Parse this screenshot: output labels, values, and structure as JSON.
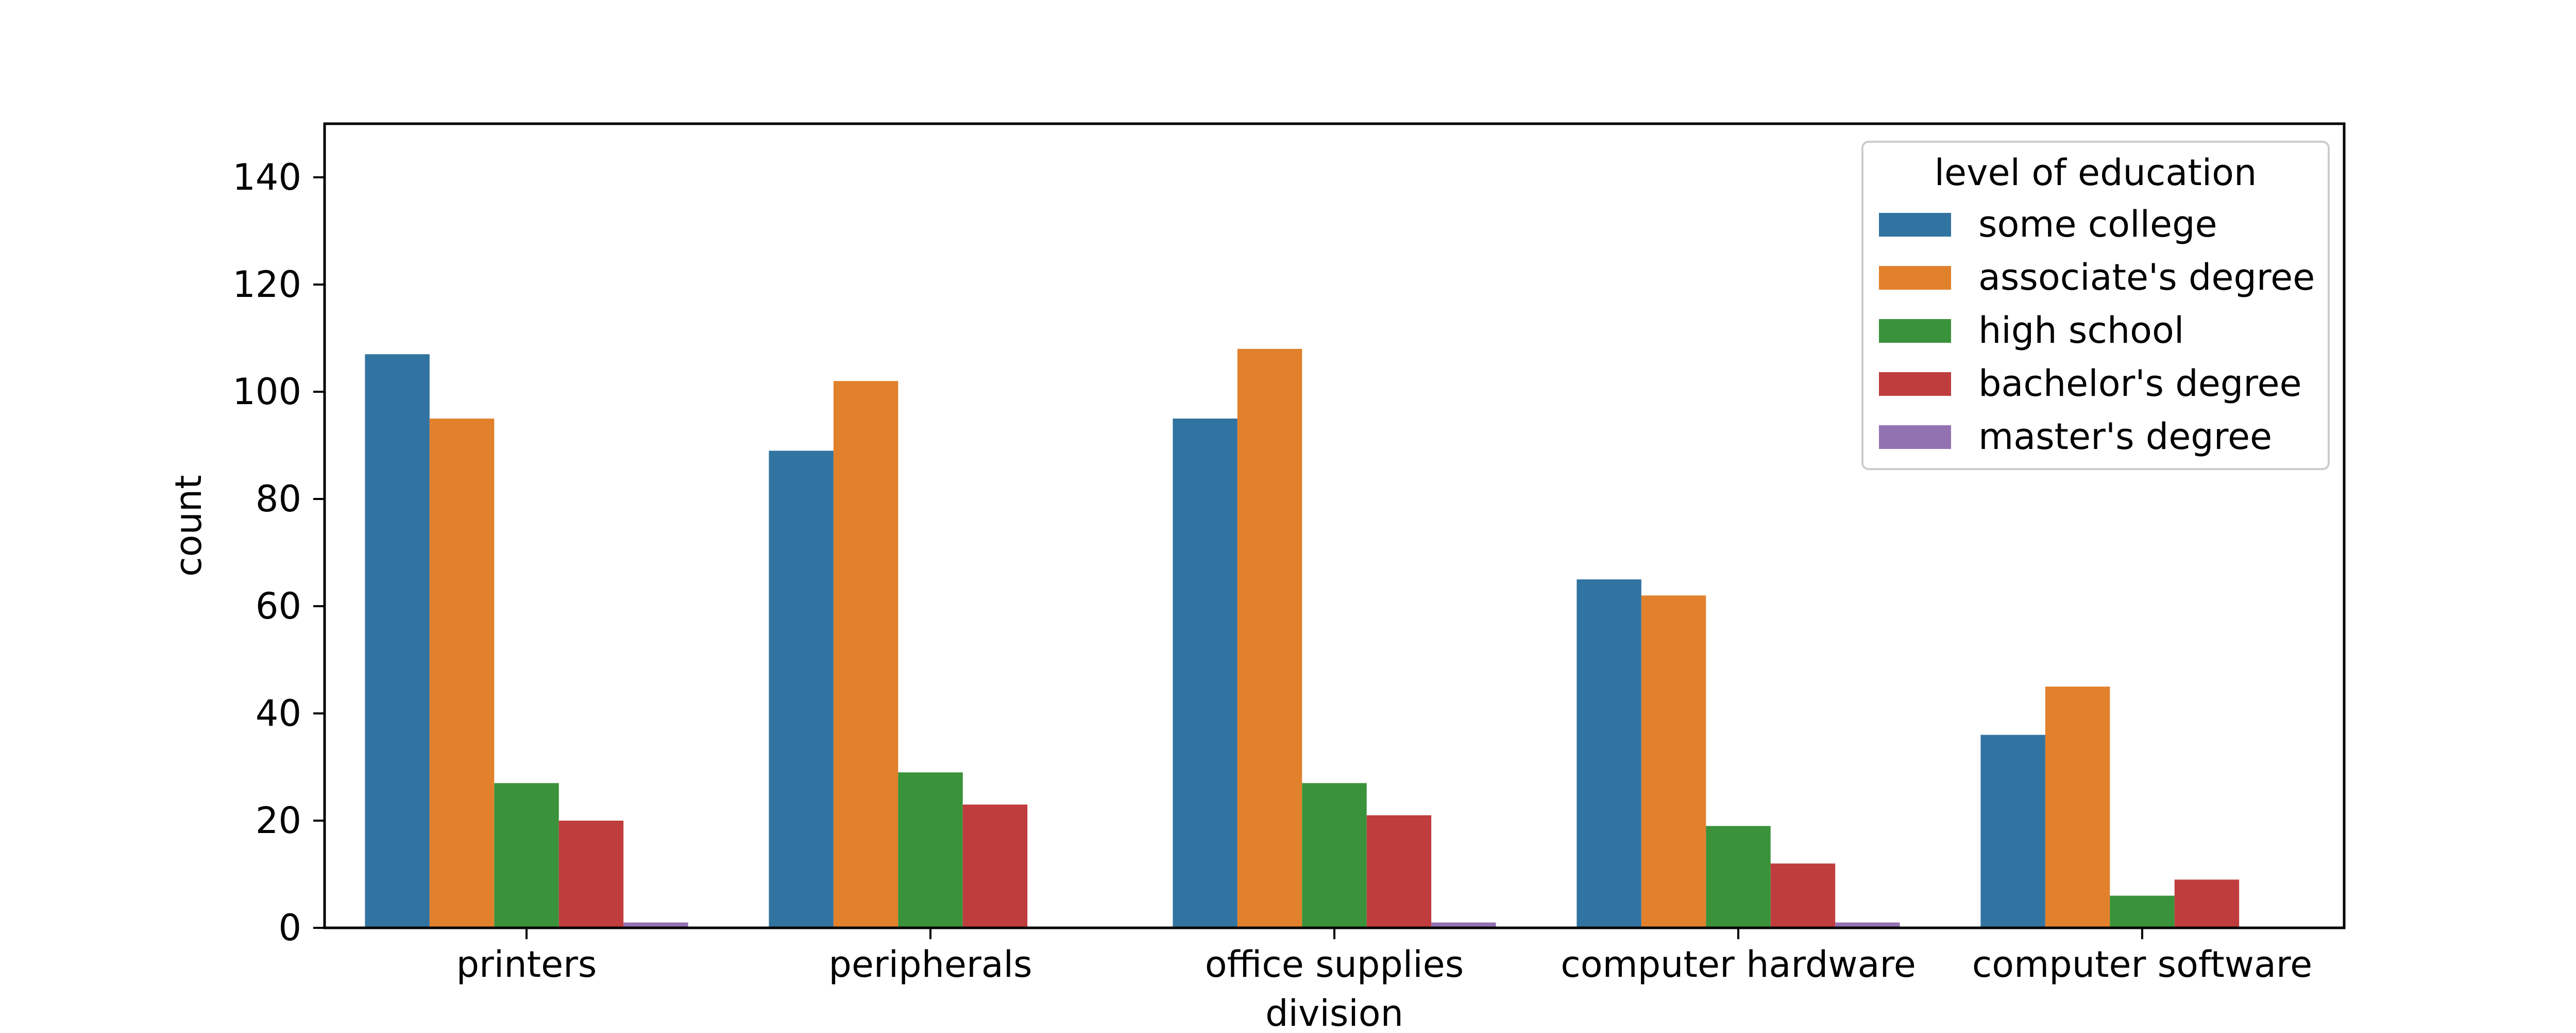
{
  "chart_data": {
    "type": "bar",
    "title": "",
    "xlabel": "division",
    "ylabel": "count",
    "categories": [
      "printers",
      "peripherals",
      "office supplies",
      "computer hardware",
      "computer software"
    ],
    "series": [
      {
        "name": "some college",
        "color": "#3274a1",
        "values": [
          107,
          89,
          95,
          65,
          36
        ]
      },
      {
        "name": "associate's degree",
        "color": "#e1812c",
        "values": [
          95,
          102,
          108,
          62,
          45
        ]
      },
      {
        "name": "high school",
        "color": "#3a923a",
        "values": [
          27,
          29,
          27,
          19,
          6
        ]
      },
      {
        "name": "bachelor's degree",
        "color": "#c03d3e",
        "values": [
          20,
          23,
          21,
          12,
          9
        ]
      },
      {
        "name": "master's degree",
        "color": "#9372b2",
        "values": [
          1,
          0,
          1,
          1,
          0
        ]
      }
    ],
    "ylim": [
      0,
      150
    ],
    "yticks": [
      0,
      20,
      40,
      60,
      80,
      100,
      120,
      140
    ],
    "grid": false,
    "legend": {
      "title": "level of education",
      "position": "top-right"
    }
  }
}
